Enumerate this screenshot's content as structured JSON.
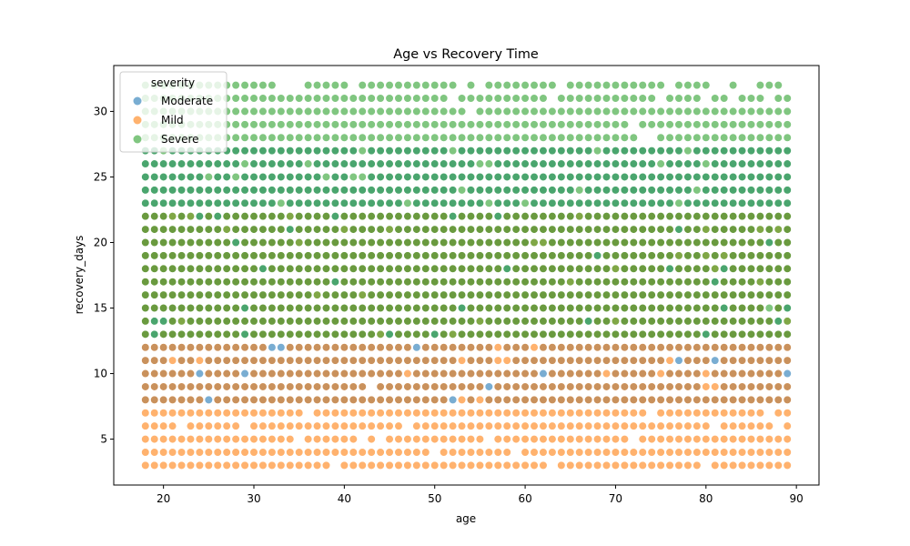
{
  "chart_data": {
    "type": "scatter",
    "title": "Age vs Recovery Time",
    "xlabel": "age",
    "ylabel": "recovery_days",
    "xlim": [
      14.5,
      92.5
    ],
    "ylim": [
      1.5,
      33.5
    ],
    "x_ticks": [
      20,
      30,
      40,
      50,
      60,
      70,
      80,
      90
    ],
    "y_ticks": [
      5,
      10,
      15,
      20,
      25,
      30
    ],
    "grid": false,
    "legend": {
      "title": "severity",
      "placement": "top-left"
    },
    "series": [
      {
        "name": "Moderate",
        "color": "#1f77b4",
        "x_range": [
          18,
          89
        ],
        "y_range": [
          8,
          27
        ],
        "note_points": "integer ages 18–89 at integer recovery days 8–27"
      },
      {
        "name": "Mild",
        "color": "#ff7f0e",
        "x_range": [
          18,
          89
        ],
        "y_range": [
          3,
          22
        ],
        "note_points": "integer ages 18–89 at integer recovery days 3–22"
      },
      {
        "name": "Severe",
        "color": "#2ca02c",
        "x_range": [
          18,
          89
        ],
        "y_range": [
          13,
          32
        ],
        "note_points": "integer ages 18–89 at integer recovery days 13–32"
      }
    ]
  }
}
